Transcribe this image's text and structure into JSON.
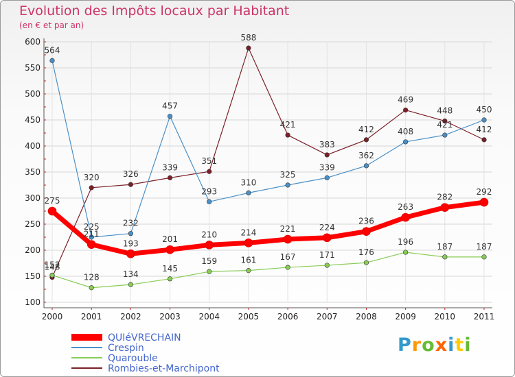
{
  "title": "Evolution des Impôts locaux par Habitant",
  "subtitle": "(en € et par an)",
  "brand": {
    "letters": [
      "P",
      "r",
      "o",
      "x",
      "i",
      "t",
      "i"
    ],
    "colors": [
      "#3399cc",
      "#ff9900",
      "#66bb33",
      "#ff6600",
      "#3399cc",
      "#ffcc00",
      "#66bb33"
    ]
  },
  "chart_data": {
    "type": "line",
    "title": "Evolution des Impôts locaux par Habitant",
    "subtitle": "(en € et par an)",
    "xlabel": "",
    "ylabel": "",
    "ylim": [
      100,
      600
    ],
    "yticks": [
      100,
      150,
      200,
      250,
      300,
      350,
      400,
      450,
      500,
      550,
      600
    ],
    "grid": true,
    "legend_position": "bottom-left",
    "categories": [
      "2000",
      "2001",
      "2002",
      "2003",
      "2004",
      "2005",
      "2006",
      "2007",
      "2008",
      "2009",
      "2010",
      "2011"
    ],
    "series": [
      {
        "name": "Rombies-et-Marchipont",
        "color": "#7a1f28",
        "values": [
          148,
          320,
          326,
          339,
          351,
          588,
          421,
          383,
          412,
          469,
          448,
          412
        ],
        "labels": [
          "148",
          "320",
          "326",
          "339",
          "351",
          "588",
          "421",
          "383",
          "412",
          "469",
          "448",
          "412"
        ]
      },
      {
        "name": "Crespin",
        "color": "#4a90c8",
        "values": [
          564,
          225,
          232,
          457,
          293,
          310,
          325,
          339,
          362,
          408,
          421,
          450
        ],
        "labels": [
          "564",
          "225",
          "232",
          "457",
          "293",
          "310",
          "325",
          "339",
          "362",
          "408",
          "421",
          "450"
        ]
      },
      {
        "name": "Quarouble",
        "color": "#88cc55",
        "values": [
          152,
          128,
          134,
          145,
          159,
          161,
          167,
          171,
          176,
          196,
          187,
          187
        ],
        "labels": [
          "152",
          "128",
          "134",
          "145",
          "159",
          "161",
          "167",
          "171",
          "176",
          "196",
          "187",
          "187"
        ]
      },
      {
        "name": "QUIéVRECHAIN",
        "color": "#ff0000",
        "values": [
          275,
          211,
          193,
          201,
          210,
          214,
          221,
          224,
          236,
          263,
          282,
          292
        ],
        "labels": [
          "275",
          "211",
          "193",
          "201",
          "210",
          "214",
          "221",
          "224",
          "236",
          "263",
          "282",
          "292"
        ]
      }
    ],
    "legend": [
      "QUIéVRECHAIN",
      "Crespin",
      "Quarouble",
      "Rombies-et-Marchipont"
    ]
  }
}
